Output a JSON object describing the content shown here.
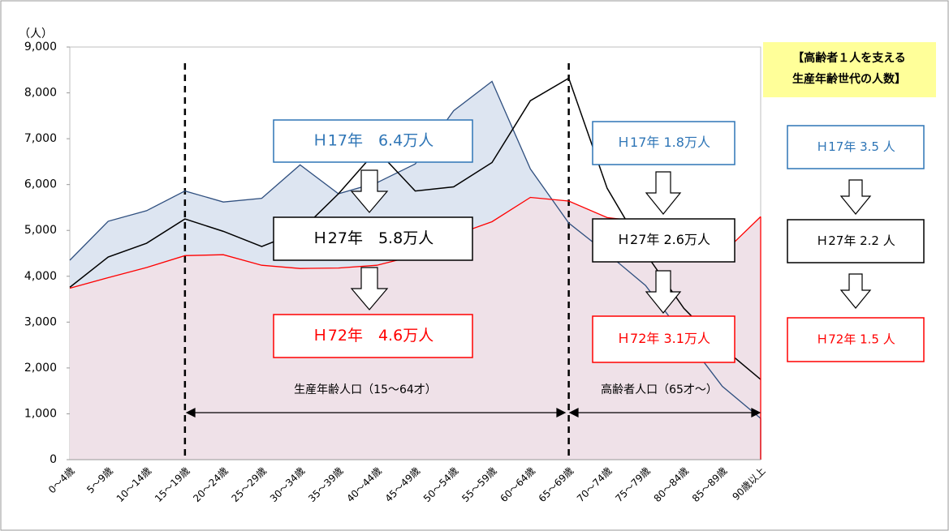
{
  "chart_data": {
    "type": "line",
    "y_axis_label": "（人）",
    "categories": [
      "0～4歳",
      "5～9歳",
      "10～14歳",
      "15～19歳",
      "20～24歳",
      "25～29歳",
      "30～34歳",
      "35～39歳",
      "40～44歳",
      "45～49歳",
      "50～54歳",
      "55～59歳",
      "60～64歳",
      "65～69歳",
      "70～74歳",
      "75～79歳",
      "80～84歳",
      "85～89歳",
      "90歳以上"
    ],
    "series": [
      {
        "name": "H17",
        "color": "#2f4f7f",
        "fill": "#dde5f1",
        "values": [
          4350,
          5200,
          5430,
          5860,
          5620,
          5700,
          6430,
          5800,
          6040,
          6450,
          7610,
          8250,
          6340,
          5160,
          4500,
          3800,
          2700,
          1600,
          900
        ]
      },
      {
        "name": "H27",
        "color": "#000000",
        "values": [
          3760,
          4420,
          4720,
          5250,
          4980,
          4650,
          4980,
          5800,
          6750,
          5860,
          5950,
          6480,
          7830,
          8320,
          5920,
          4500,
          3300,
          2450,
          1750
        ]
      },
      {
        "name": "H72",
        "color": "#ff0000",
        "fill": "#efe1e8",
        "values": [
          3740,
          3970,
          4190,
          4450,
          4470,
          4240,
          4170,
          4180,
          4240,
          4450,
          4890,
          5190,
          5720,
          5640,
          5280,
          5180,
          5080,
          4490,
          5300
        ]
      }
    ],
    "ylim": [
      0,
      9000
    ],
    "yticks": [
      0,
      {
        "value": 1000,
        "label": "1,000"
      },
      {
        "value": 2000,
        "label": "2,000"
      },
      {
        "value": 3000,
        "label": "3,000"
      },
      {
        "value": 4000,
        "label": "4,000"
      },
      {
        "value": 5000,
        "label": "5,000"
      },
      {
        "value": 6000,
        "label": "6,000"
      },
      {
        "value": 7000,
        "label": "7,000"
      },
      {
        "value": 8000,
        "label": "8,000"
      },
      {
        "value": 9000,
        "label": "9,000"
      }
    ],
    "grid": false,
    "ranges": [
      {
        "text": "生産年齢人口（15～64才）"
      },
      {
        "text": "高齢者人口（65才～）"
      }
    ],
    "annotations": [
      {
        "text": "Ｈ17年　6.4万人",
        "color": "#2e75b6"
      },
      {
        "text": "Ｈ27年　5.8万人",
        "color": "#000000"
      },
      {
        "text": "Ｈ72年　4.6万人",
        "color": "#ff0000"
      },
      {
        "text": "Ｈ17年 1.8万人",
        "color": "#2e75b6"
      },
      {
        "text": "Ｈ27年 2.6万人",
        "color": "#000000"
      },
      {
        "text": "Ｈ72年 3.1万人",
        "color": "#ff0000"
      },
      {
        "text": "Ｈ17年 3.5 人",
        "color": "#2e75b6"
      },
      {
        "text": "Ｈ27年 2.2 人",
        "color": "#000000"
      },
      {
        "text": "Ｈ72年 1.5 人",
        "color": "#ff0000"
      }
    ],
    "panel_title": [
      "【高齢者１人を支える",
      "生産年齢世代の人数】"
    ]
  }
}
